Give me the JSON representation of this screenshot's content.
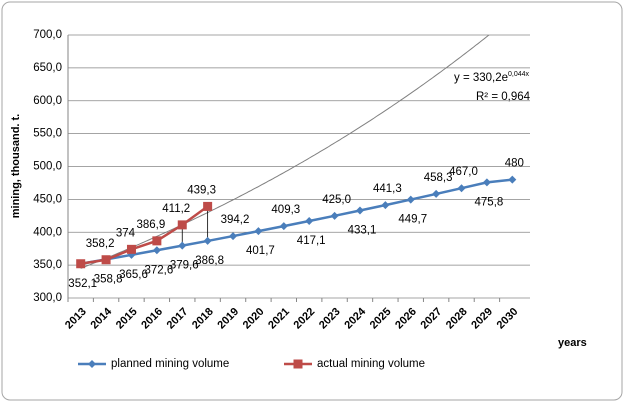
{
  "chart_data": {
    "type": "line",
    "ylabel": "mining, thousand. t.",
    "xlabel": "years",
    "categories": [
      "2013",
      "2014",
      "2015",
      "2016",
      "2017",
      "2018",
      "2019",
      "2020",
      "2021",
      "2022",
      "2023",
      "2024",
      "2025",
      "2026",
      "2027",
      "2028",
      "2029",
      "2030"
    ],
    "series": [
      {
        "name": "planned mining volume",
        "color": "#4a7ebb",
        "values": [
          352.1,
          358.8,
          365.6,
          372.6,
          379.6,
          386.8,
          394.2,
          401.7,
          409.3,
          417.1,
          425.0,
          433.1,
          441.3,
          449.7,
          458.3,
          467.0,
          475.8,
          480
        ],
        "value_labels": [
          "352,1",
          "358,8",
          "365,6",
          "372,6",
          "379,6",
          "386,8",
          "394,2",
          "401,7",
          "409,3",
          "417,1",
          "425,0",
          "433,1",
          "441,3",
          "449,7",
          "458,3",
          "467,0",
          "475,8",
          "480"
        ]
      },
      {
        "name": "actual mining volume",
        "color": "#be4b48",
        "values": [
          352.1,
          358.2,
          374,
          386.9,
          411.2,
          439.3,
          null,
          null,
          null,
          null,
          null,
          null,
          null,
          null,
          null,
          null,
          null,
          null
        ],
        "value_labels": [
          null,
          "358,2",
          "374",
          "386,9",
          "411,2",
          "439,3",
          null,
          null,
          null,
          null,
          null,
          null,
          null,
          null,
          null,
          null,
          null,
          null
        ]
      }
    ],
    "trendline": {
      "a": 330.2,
      "b": 0.044,
      "equation": "y = 330,2e",
      "exponent": "0,044x",
      "r2": "R² = 0,964"
    },
    "ylim": [
      300,
      700
    ],
    "yticks": [
      {
        "value": 300,
        "label": "300,0"
      },
      {
        "value": 350,
        "label": "350,0"
      },
      {
        "value": 400,
        "label": "400,0"
      },
      {
        "value": 450,
        "label": "450,0"
      },
      {
        "value": 500,
        "label": "500,0"
      },
      {
        "value": 550,
        "label": "550,0"
      },
      {
        "value": 600,
        "label": "600,0"
      },
      {
        "value": 650,
        "label": "650,0"
      },
      {
        "value": 700,
        "label": "700,0"
      }
    ],
    "grid": true
  }
}
